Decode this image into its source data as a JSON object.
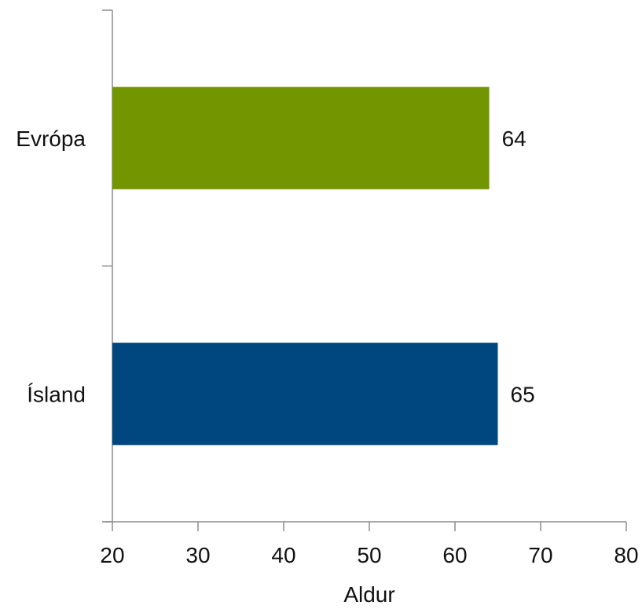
{
  "chart_data": {
    "type": "bar",
    "orientation": "horizontal",
    "categories": [
      "Evrópa",
      "Ísland"
    ],
    "values": [
      64,
      65
    ],
    "data_labels": [
      "64",
      "65"
    ],
    "colors": [
      "#739600",
      "#00467f"
    ],
    "xlabel": "Aldur",
    "ylabel": "",
    "xlim": [
      20,
      80
    ],
    "xticks": [
      20,
      30,
      40,
      50,
      60,
      70,
      80
    ],
    "xtick_labels": [
      "20",
      "30",
      "40",
      "50",
      "60",
      "70",
      "80"
    ],
    "grid": false,
    "legend": "none"
  }
}
